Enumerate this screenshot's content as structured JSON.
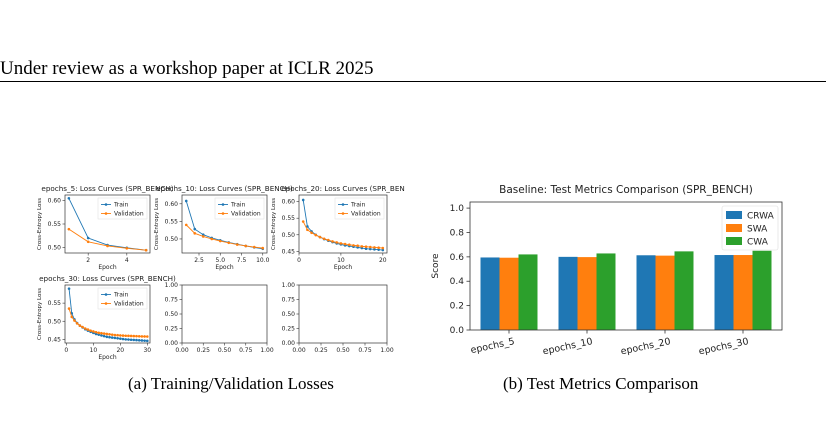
{
  "header": {
    "text": "Under review as a workshop paper at ICLR 2025"
  },
  "captions": {
    "a": "(a) Training/Validation Losses",
    "b": "(b) Test Metrics Comparison"
  },
  "colors": {
    "train": "#1f77b4",
    "validation": "#ff7f0e",
    "crwa": "#1f77b4",
    "swa": "#ff7f0e",
    "cwa": "#2ca02c"
  },
  "chart_data": [
    {
      "type": "line",
      "title": "epochs_5: Loss Curves (SPR_BENCH)",
      "xlabel": "Epoch",
      "ylabel": "Cross-Entropy Loss",
      "xlim": [
        0.8,
        5.2
      ],
      "ylim": [
        0.488,
        0.612
      ],
      "xticks": [
        2,
        4
      ],
      "yticks": [
        0.5,
        0.55,
        0.6
      ],
      "xticklabels": [
        "2",
        "4"
      ],
      "yticklabels": [
        "0.50",
        "0.55",
        "0.60"
      ],
      "legend": "top-right",
      "series": [
        {
          "name": "Train",
          "x": [
            1,
            2,
            3,
            4,
            5
          ],
          "values": [
            0.605,
            0.52,
            0.505,
            0.499,
            0.494
          ]
        },
        {
          "name": "Validation",
          "x": [
            1,
            2,
            3,
            4,
            5
          ],
          "values": [
            0.539,
            0.512,
            0.503,
            0.498,
            0.494
          ]
        }
      ]
    },
    {
      "type": "line",
      "title": "epochs_10: Loss Curves (SPR_BENCH)",
      "xlabel": "Epoch",
      "ylabel": "Cross-Entropy Loss",
      "xlim": [
        0.5,
        10.5
      ],
      "ylim": [
        0.46,
        0.625
      ],
      "xticks": [
        2.5,
        5,
        7.5,
        10
      ],
      "yticks": [
        0.5,
        0.55,
        0.6
      ],
      "xticklabels": [
        "2.5",
        "5.0",
        "7.5",
        "10.0"
      ],
      "yticklabels": [
        "0.50",
        "0.55",
        "0.60"
      ],
      "legend": "top-right",
      "series": [
        {
          "name": "Train",
          "x": [
            1,
            2,
            3,
            4,
            5,
            6,
            7,
            8,
            9,
            10
          ],
          "values": [
            0.608,
            0.528,
            0.512,
            0.503,
            0.496,
            0.49,
            0.485,
            0.48,
            0.476,
            0.472
          ]
        },
        {
          "name": "Validation",
          "x": [
            1,
            2,
            3,
            4,
            5,
            6,
            7,
            8,
            9,
            10
          ],
          "values": [
            0.54,
            0.516,
            0.507,
            0.5,
            0.494,
            0.489,
            0.484,
            0.48,
            0.477,
            0.474
          ]
        }
      ]
    },
    {
      "type": "line",
      "title": "epochs_20: Loss Curves (SPR_BEN",
      "xlabel": "Epoch",
      "ylabel": "Cross-Entropy Loss",
      "xlim": [
        0,
        21
      ],
      "ylim": [
        0.445,
        0.62
      ],
      "xticks": [
        0,
        10,
        20
      ],
      "yticks": [
        0.45,
        0.5,
        0.55,
        0.6
      ],
      "xticklabels": [
        "0",
        "10",
        "20"
      ],
      "yticklabels": [
        "0.45",
        "0.50",
        "0.55",
        "0.60"
      ],
      "legend": "top-right",
      "series": [
        {
          "name": "Train",
          "x": [
            1,
            2,
            3,
            4,
            5,
            6,
            7,
            8,
            9,
            10,
            11,
            12,
            13,
            14,
            15,
            16,
            17,
            18,
            19,
            20
          ],
          "values": [
            0.605,
            0.525,
            0.51,
            0.5,
            0.493,
            0.487,
            0.482,
            0.478,
            0.474,
            0.471,
            0.468,
            0.466,
            0.464,
            0.462,
            0.46,
            0.458,
            0.457,
            0.456,
            0.455,
            0.454
          ]
        },
        {
          "name": "Validation",
          "x": [
            1,
            2,
            3,
            4,
            5,
            6,
            7,
            8,
            9,
            10,
            11,
            12,
            13,
            14,
            15,
            16,
            17,
            18,
            19,
            20
          ],
          "values": [
            0.54,
            0.515,
            0.506,
            0.499,
            0.493,
            0.488,
            0.484,
            0.48,
            0.477,
            0.474,
            0.472,
            0.47,
            0.468,
            0.467,
            0.465,
            0.464,
            0.463,
            0.462,
            0.461,
            0.46
          ]
        }
      ]
    },
    {
      "type": "line",
      "title": "epochs_30: Loss Curves (SPR_BENCH)",
      "xlabel": "Epoch",
      "ylabel": "Cross-Entropy Loss",
      "xlim": [
        -0.5,
        31
      ],
      "ylim": [
        0.44,
        0.6
      ],
      "xticks": [
        0,
        10,
        20,
        30
      ],
      "yticks": [
        0.45,
        0.5,
        0.55
      ],
      "xticklabels": [
        "0",
        "10",
        "20",
        "30"
      ],
      "yticklabels": [
        "0.45",
        "0.50",
        "0.55"
      ],
      "legend": "top-right",
      "series": [
        {
          "name": "Train",
          "x": [
            1,
            2,
            3,
            4,
            5,
            6,
            7,
            8,
            9,
            10,
            11,
            12,
            13,
            14,
            15,
            16,
            17,
            18,
            19,
            20,
            21,
            22,
            23,
            24,
            25,
            26,
            27,
            28,
            29,
            30
          ],
          "values": [
            0.59,
            0.522,
            0.505,
            0.495,
            0.488,
            0.483,
            0.478,
            0.474,
            0.471,
            0.468,
            0.465,
            0.463,
            0.461,
            0.459,
            0.457,
            0.456,
            0.455,
            0.454,
            0.453,
            0.452,
            0.451,
            0.45,
            0.4495,
            0.449,
            0.4485,
            0.448,
            0.4475,
            0.447,
            0.4465,
            0.446
          ]
        },
        {
          "name": "Validation",
          "x": [
            1,
            2,
            3,
            4,
            5,
            6,
            7,
            8,
            9,
            10,
            11,
            12,
            13,
            14,
            15,
            16,
            17,
            18,
            19,
            20,
            21,
            22,
            23,
            24,
            25,
            26,
            27,
            28,
            29,
            30
          ],
          "values": [
            0.535,
            0.512,
            0.502,
            0.494,
            0.488,
            0.484,
            0.48,
            0.477,
            0.474,
            0.472,
            0.47,
            0.468,
            0.467,
            0.466,
            0.465,
            0.464,
            0.463,
            0.462,
            0.4615,
            0.461,
            0.4605,
            0.46,
            0.4597,
            0.4594,
            0.4591,
            0.4588,
            0.4585,
            0.4582,
            0.458,
            0.4578
          ]
        }
      ]
    },
    {
      "type": "line",
      "title": "",
      "xlabel": "",
      "ylabel": "",
      "xlim": [
        0,
        1
      ],
      "ylim": [
        0,
        1
      ],
      "xticks": [
        0,
        0.25,
        0.5,
        0.75,
        1
      ],
      "yticks": [
        0,
        0.25,
        0.5,
        0.75,
        1
      ],
      "xticklabels": [
        "0.00",
        "0.25",
        "0.50",
        "0.75",
        "1.00"
      ],
      "yticklabels": [
        "0.00",
        "0.25",
        "0.50",
        "0.75",
        "1.00"
      ],
      "series": []
    },
    {
      "type": "line",
      "title": "",
      "xlabel": "",
      "ylabel": "",
      "xlim": [
        0,
        1
      ],
      "ylim": [
        0,
        1
      ],
      "xticks": [
        0,
        0.25,
        0.5,
        0.75,
        1
      ],
      "yticks": [
        0,
        0.25,
        0.5,
        0.75,
        1
      ],
      "xticklabels": [
        "0.00",
        "0.25",
        "0.50",
        "0.75",
        "1.00"
      ],
      "yticklabels": [
        "0.00",
        "0.25",
        "0.50",
        "0.75",
        "1.00"
      ],
      "series": []
    },
    {
      "type": "bar",
      "title": "Baseline: Test Metrics Comparison (SPR_BENCH)",
      "xlabel": "",
      "ylabel": "Score",
      "ylim": [
        0,
        1.05
      ],
      "yticks": [
        0,
        0.2,
        0.4,
        0.6,
        0.8,
        1.0
      ],
      "yticklabels": [
        "0.0",
        "0.2",
        "0.4",
        "0.6",
        "0.8",
        "1.0"
      ],
      "categories": [
        "epochs_5",
        "epochs_10",
        "epochs_20",
        "epochs_30"
      ],
      "legend": "top-right",
      "series": [
        {
          "name": "CRWA",
          "values": [
            0.595,
            0.6,
            0.613,
            0.615
          ]
        },
        {
          "name": "SWA",
          "values": [
            0.593,
            0.598,
            0.61,
            0.615
          ]
        },
        {
          "name": "CWA",
          "values": [
            0.62,
            0.628,
            0.645,
            0.65
          ]
        }
      ]
    }
  ]
}
